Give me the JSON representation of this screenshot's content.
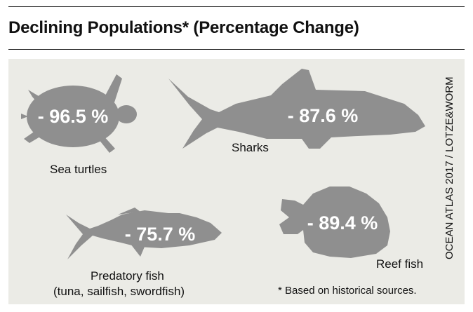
{
  "title": "Declining Populations* (Percentage Change)",
  "source": "OCEAN ATLAS 2017 / LOTZE&WORM",
  "footnote": "* Based on historical sources.",
  "colors": {
    "background": "#ebebe6",
    "silhouette": "#8f8f8f",
    "value_text": "#ffffff"
  },
  "chart_data": {
    "type": "pictogram",
    "title": "Declining Populations* (Percentage Change)",
    "unit": "%",
    "categories": [
      "Sea turtles",
      "Sharks",
      "Predatory fish",
      "Reef fish"
    ],
    "values": [
      -96.5,
      -87.6,
      -75.7,
      -89.4
    ],
    "items": [
      {
        "name": "Sea turtles",
        "label": "Sea turtles",
        "sublabel": "",
        "value": -96.5,
        "display": "- 96.5 %",
        "icon": "turtle-icon"
      },
      {
        "name": "Sharks",
        "label": "Sharks",
        "sublabel": "",
        "value": -87.6,
        "display": "- 87.6 %",
        "icon": "shark-icon"
      },
      {
        "name": "Predatory fish",
        "label": "Predatory fish",
        "sublabel": "(tuna, sailfish, swordfish)",
        "value": -75.7,
        "display": "- 75.7 %",
        "icon": "tuna-icon"
      },
      {
        "name": "Reef fish",
        "label": "Reef fish",
        "sublabel": "",
        "value": -89.4,
        "display": "- 89.4 %",
        "icon": "reef-fish-icon"
      }
    ]
  }
}
